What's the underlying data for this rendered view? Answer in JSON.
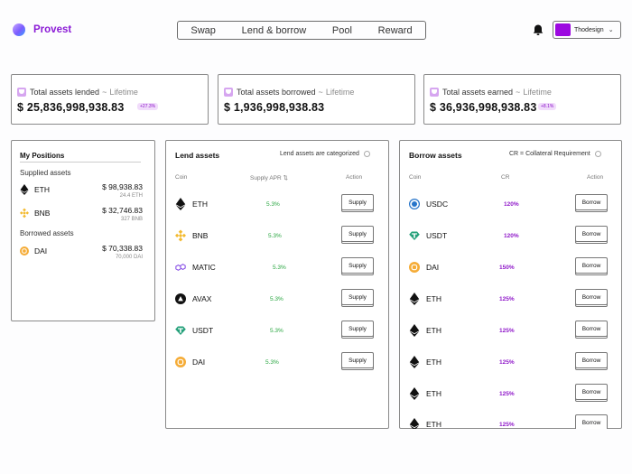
{
  "brand": {
    "name": "Provest"
  },
  "nav": [
    "Swap",
    "Lend & borrow",
    "Pool",
    "Reward"
  ],
  "user": {
    "name": "Thodesign"
  },
  "stats": [
    {
      "label": "Total assets lended",
      "period": "Lifetime",
      "value": "$ 25,836,998,938.83",
      "badge": "+27.3%"
    },
    {
      "label": "Total assets borrowed",
      "period": "Lifetime",
      "value": "$ 1,936,998,938.83",
      "badge": ""
    },
    {
      "label": "Total assets earned",
      "period": "Lifetime",
      "value": "$ 36,936,998,938.83",
      "badge": "+8.1%"
    }
  ],
  "positions": {
    "title": "My Positions",
    "supplied_label": "Supplied assets",
    "supplied": [
      {
        "symbol": "ETH",
        "icon": "eth-icon",
        "amount": "$ 98,938.83",
        "sub": "24.4 ETH"
      },
      {
        "symbol": "BNB",
        "icon": "bnb-icon",
        "amount": "$ 32,746.83",
        "sub": "327 BNB"
      }
    ],
    "borrowed_label": "Borrowed assets",
    "borrowed": [
      {
        "symbol": "DAI",
        "icon": "dai-icon",
        "amount": "$ 70,338.83",
        "sub": "70,000 DAI"
      }
    ]
  },
  "lend": {
    "title": "Lend assets",
    "note": "Lend assets are categorized",
    "col_coin": "Coin",
    "col_apr": "Supply APR",
    "col_action": "Action",
    "rows": [
      {
        "symbol": "ETH",
        "icon": "eth-icon",
        "apr": "5.3%",
        "action": "Supply"
      },
      {
        "symbol": "BNB",
        "icon": "bnb-icon",
        "apr": "5.3%",
        "action": "Supply"
      },
      {
        "symbol": "MATIC",
        "icon": "matic-icon",
        "apr": "5.3%",
        "action": "Supply"
      },
      {
        "symbol": "AVAX",
        "icon": "avax-icon",
        "apr": "5.3%",
        "action": "Supply"
      },
      {
        "symbol": "USDT",
        "icon": "usdt-icon",
        "apr": "5.3%",
        "action": "Supply"
      },
      {
        "symbol": "DAI",
        "icon": "dai-icon",
        "apr": "5.3%",
        "action": "Supply"
      }
    ]
  },
  "borrow": {
    "title": "Borrow assets",
    "note": "CR = Collateral Requirement",
    "col_coin": "Coin",
    "col_cr": "CR",
    "col_action": "Action",
    "rows": [
      {
        "symbol": "USDC",
        "icon": "usdc-icon",
        "cr": "120%",
        "action": "Borrow"
      },
      {
        "symbol": "USDT",
        "icon": "usdt-icon",
        "cr": "120%",
        "action": "Borrow"
      },
      {
        "symbol": "DAI",
        "icon": "dai-icon",
        "cr": "150%",
        "action": "Borrow"
      },
      {
        "symbol": "ETH",
        "icon": "eth-icon",
        "cr": "125%",
        "action": "Borrow"
      },
      {
        "symbol": "ETH",
        "icon": "eth-icon",
        "cr": "125%",
        "action": "Borrow"
      },
      {
        "symbol": "ETH",
        "icon": "eth-icon",
        "cr": "125%",
        "action": "Borrow"
      },
      {
        "symbol": "ETH",
        "icon": "eth-icon",
        "cr": "125%",
        "action": "Borrow"
      },
      {
        "symbol": "ETH",
        "icon": "eth-icon",
        "cr": "125%",
        "action": "Borrow"
      }
    ]
  },
  "colors": {
    "brand": "#8b1bd6",
    "apr_green": "#26a53e",
    "cr_purple": "#8f17c9",
    "badge_bg": "#f1dcfb"
  }
}
